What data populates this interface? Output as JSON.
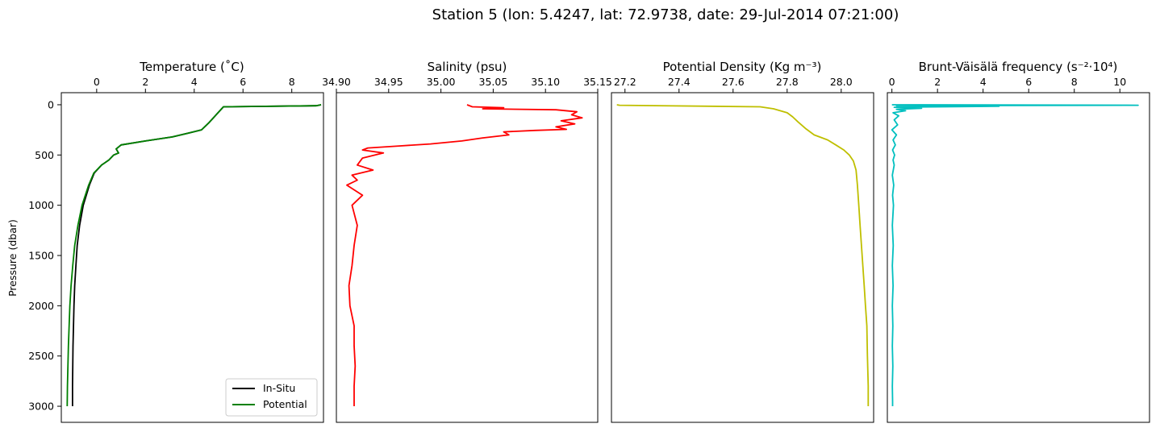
{
  "chart_data": {
    "title": "Station 5 (lon: 5.4247, lat: 72.9738, date: 29-Jul-2014 07:21:00)",
    "shared_y": {
      "label": "Pressure (dbar)",
      "ylim": [
        3160,
        -120
      ],
      "inverted": true,
      "ticks": [
        0,
        500,
        1000,
        1500,
        2000,
        2500,
        3000
      ]
    },
    "panels": [
      {
        "type": "line",
        "title": "Temperature (˚C)",
        "xaxis_position": "top",
        "xlim": [
          -1.45,
          9.3
        ],
        "xticks": [
          0,
          2,
          4,
          6,
          8
        ],
        "legend": {
          "placement": "lower-right",
          "entries": [
            "In-Situ",
            "Potential"
          ]
        },
        "series": [
          {
            "name": "In-Situ",
            "color": "#000000",
            "x": [
              9.2,
              9.0,
              5.2,
              4.9,
              4.6,
              4.3,
              3.8,
              3.1,
              2.0,
              1.0,
              0.8,
              0.9,
              0.7,
              0.5,
              0.2,
              -0.1,
              -0.3,
              -0.55,
              -0.7,
              -0.8,
              -0.85,
              -0.9,
              -0.93,
              -0.95,
              -0.97,
              -0.98,
              -0.99,
              -0.99
            ],
            "y": [
              0,
              10,
              20,
              100,
              180,
              250,
              280,
              320,
              360,
              400,
              440,
              480,
              500,
              550,
              600,
              680,
              800,
              1000,
              1200,
              1400,
              1600,
              1800,
              2000,
              2200,
              2400,
              2600,
              2800,
              3000
            ]
          },
          {
            "name": "Potential",
            "color": "#008000",
            "x": [
              9.2,
              9.0,
              5.2,
              4.9,
              4.6,
              4.3,
              3.8,
              3.1,
              2.0,
              1.0,
              0.8,
              0.9,
              0.7,
              0.5,
              0.2,
              -0.12,
              -0.33,
              -0.6,
              -0.77,
              -0.9,
              -0.98,
              -1.05,
              -1.1,
              -1.13,
              -1.16,
              -1.18,
              -1.2,
              -1.21
            ],
            "y": [
              0,
              10,
              20,
              100,
              180,
              250,
              280,
              320,
              360,
              400,
              440,
              480,
              500,
              550,
              600,
              680,
              800,
              1000,
              1200,
              1400,
              1600,
              1800,
              2000,
              2200,
              2400,
              2600,
              2800,
              3000
            ]
          }
        ]
      },
      {
        "type": "line",
        "title": "Salinity (psu)",
        "xaxis_position": "top",
        "xlim": [
          34.9,
          35.15
        ],
        "xticks": [
          34.9,
          34.95,
          35.0,
          35.05,
          35.1,
          35.15
        ],
        "xticklabels": [
          "34.90",
          "34.95",
          "35.00",
          "35.05",
          "35.10",
          "35.15"
        ],
        "series": [
          {
            "name": "Salinity",
            "color": "#ff0000",
            "x": [
              35.025,
              35.03,
              35.06,
              35.04,
              35.11,
              35.13,
              35.125,
              35.135,
              35.115,
              35.128,
              35.11,
              35.12,
              35.09,
              35.06,
              35.065,
              35.04,
              35.02,
              34.99,
              34.96,
              34.93,
              34.925,
              34.945,
              34.925,
              34.92,
              34.935,
              34.915,
              34.92,
              34.91,
              34.925,
              34.915,
              34.92,
              34.917,
              34.915,
              34.912,
              34.913,
              34.917,
              34.917,
              34.918,
              34.917,
              34.917
            ],
            "y": [
              0,
              20,
              30,
              40,
              50,
              70,
              100,
              130,
              160,
              190,
              220,
              245,
              255,
              270,
              300,
              330,
              360,
              390,
              410,
              430,
              450,
              480,
              530,
              600,
              650,
              700,
              750,
              800,
              900,
              1000,
              1200,
              1400,
              1600,
              1800,
              2000,
              2200,
              2400,
              2600,
              2800,
              3000
            ]
          }
        ]
      },
      {
        "type": "line",
        "title": "Potential Density (Kg m⁻³)",
        "xaxis_position": "top",
        "xlim": [
          27.15,
          28.12
        ],
        "xticks": [
          27.2,
          27.4,
          27.6,
          27.8,
          28.0
        ],
        "xticklabels": [
          "27.2",
          "27.4",
          "27.6",
          "27.8",
          "28.0"
        ],
        "series": [
          {
            "name": "Potential Density",
            "color": "#bfbf00",
            "x": [
              27.17,
              27.18,
              27.7,
              27.75,
              27.8,
              27.82,
              27.84,
              27.87,
              27.9,
              27.95,
              27.98,
              28.01,
              28.03,
              28.045,
              28.055,
              28.06,
              28.065,
              28.07,
              28.075,
              28.08,
              28.085,
              28.09,
              28.095,
              28.097,
              28.1,
              28.1
            ],
            "y": [
              0,
              5,
              20,
              40,
              80,
              120,
              170,
              240,
              300,
              350,
              400,
              450,
              500,
              560,
              650,
              800,
              1000,
              1200,
              1400,
              1600,
              1800,
              2000,
              2200,
              2500,
              2800,
              3000
            ]
          }
        ]
      },
      {
        "type": "line",
        "title": "Brunt-Väisälä frequency (s⁻²·10⁴)",
        "xaxis_position": "top",
        "xlim": [
          -0.2,
          11.3
        ],
        "xticks": [
          0,
          2,
          4,
          6,
          8,
          10
        ],
        "series": [
          {
            "name": "Brunt-Väisälä frequency",
            "color": "#00bfbf",
            "x": [
              0.0,
              10.8,
              0.2,
              4.7,
              0.1,
              1.3,
              0.2,
              0.6,
              0.05,
              0.3,
              0.1,
              0.25,
              0.0,
              0.2,
              0.05,
              0.15,
              0.03,
              0.12,
              0.05,
              0.1,
              0.02,
              0.08,
              0.03,
              0.07,
              0.02,
              0.06,
              0.02,
              0.05,
              0.02,
              0.04,
              0.02,
              0.04,
              0.02,
              0.03,
              0.03
            ],
            "y": [
              0,
              5,
              10,
              15,
              25,
              35,
              45,
              60,
              80,
              110,
              150,
              200,
              250,
              300,
              350,
              400,
              450,
              500,
              550,
              600,
              700,
              800,
              900,
              1000,
              1200,
              1400,
              1600,
              1800,
              2000,
              2200,
              2400,
              2600,
              2800,
              2950,
              3000
            ]
          }
        ]
      }
    ]
  }
}
